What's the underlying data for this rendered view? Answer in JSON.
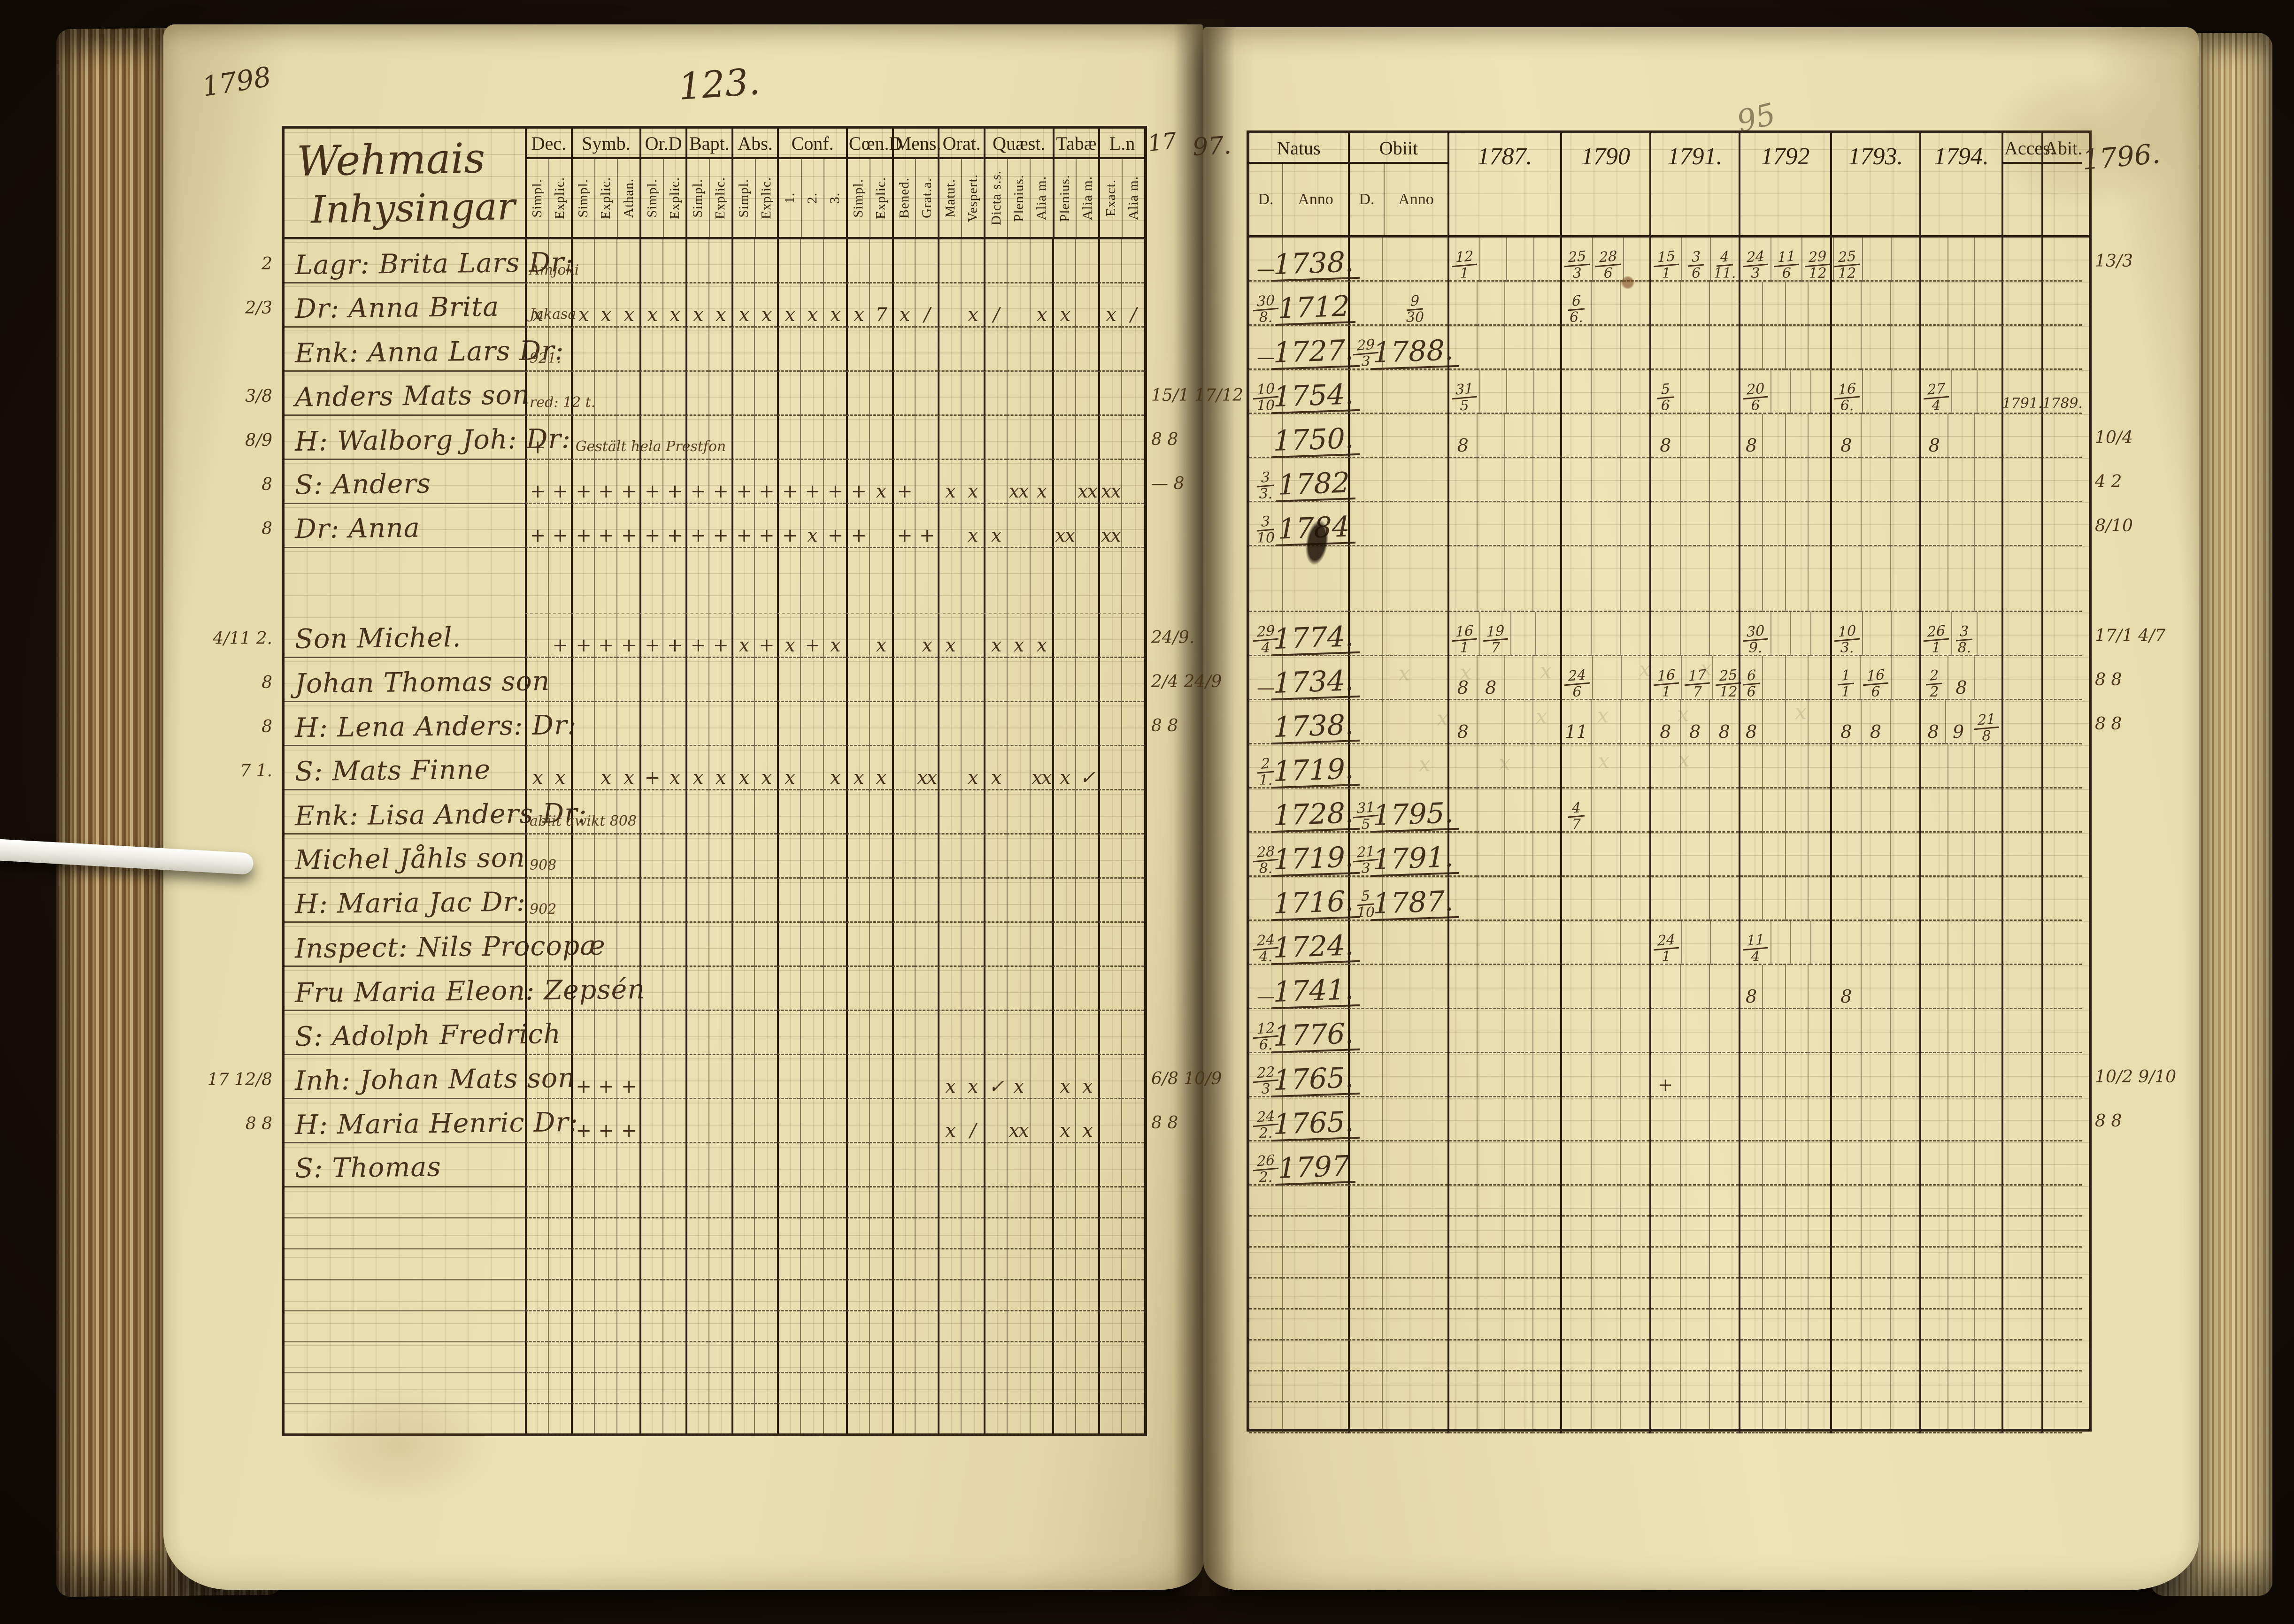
{
  "page": {
    "year_note": "1798",
    "left_page_number": "123.",
    "gutter_note_a": "17",
    "gutter_note_b": "97.",
    "right_page_faint_number": "95",
    "right_year_note": "1796."
  },
  "left_table": {
    "title_line1": "Wehmais",
    "title_line2": "Inhysingar",
    "groups": [
      {
        "label": "Dec.",
        "subs": [
          "Simpl.",
          "Explic."
        ]
      },
      {
        "label": "Symb.",
        "subs": [
          "Simpl.",
          "Explic.",
          "Athan."
        ]
      },
      {
        "label": "Or.D",
        "subs": [
          "Simpl.",
          "Explic."
        ]
      },
      {
        "label": "Bapt.",
        "subs": [
          "Simpl.",
          "Explic."
        ]
      },
      {
        "label": "Abs.",
        "subs": [
          "Simpl.",
          "Explic."
        ]
      },
      {
        "label": "Conf.",
        "subs": [
          "1.",
          "2.",
          "3."
        ]
      },
      {
        "label": "Cœn.D",
        "subs": [
          "Simpl.",
          "Explic."
        ]
      },
      {
        "label": "Mens.",
        "subs": [
          "Bened.",
          "Grat.a."
        ]
      },
      {
        "label": "Orat.",
        "subs": [
          "Matut.",
          "Vespert."
        ]
      },
      {
        "label": "Quæst.",
        "subs": [
          "Dicta s.s.",
          "Plenius.",
          "Alia m."
        ]
      },
      {
        "label": "Tabæ",
        "subs": [
          "Plenius.",
          "Alia m."
        ]
      },
      {
        "label": "L.n",
        "subs": [
          "Exact.",
          "Alia m."
        ]
      }
    ],
    "rows": [
      {
        "margin": "2",
        "name": "Lagr: Brita Lars Dr:",
        "note": "Amjoki",
        "note_col": 0,
        "marks": [],
        "right_note": ""
      },
      {
        "margin": "2/3",
        "name": "Dr: Anna Brita",
        "note": "Jakasa",
        "note_col": 0,
        "marks": [
          "x",
          "",
          "x",
          "x",
          "x",
          "x",
          "x",
          "x",
          "x",
          "x",
          "x",
          "x",
          "x",
          "x",
          "x",
          "7",
          "x",
          "/",
          "",
          "x",
          "/",
          "",
          "x",
          "x",
          "",
          "x",
          "/"
        ],
        "right_note": ""
      },
      {
        "margin": "",
        "name": "Enk: Anna Lars Dr:",
        "note": "921.",
        "note_col": 0,
        "marks": [],
        "right_note": ""
      },
      {
        "margin": "3/8",
        "name": "Anders Mats son",
        "note": "red: 12 t.",
        "note_col": 0,
        "marks": [],
        "right_note": "15/1  17/12"
      },
      {
        "margin": "8/9",
        "name": "H: Walborg Joh: Dr:",
        "note": "Gestält hela  Prestfon",
        "note_col": 2,
        "marks": [
          "+",
          "",
          "",
          "",
          "",
          "",
          "",
          "",
          "",
          "",
          "",
          "",
          "",
          "",
          "",
          "",
          "",
          "",
          "",
          "",
          "",
          "",
          "",
          "",
          "",
          "",
          ""
        ],
        "right_note": "8 8"
      },
      {
        "margin": "8",
        "name": "S: Anders",
        "note": "",
        "note_col": 0,
        "marks": [
          "+",
          "+",
          "+",
          "+",
          "+",
          "+",
          "+",
          "+",
          "+",
          "+",
          "+",
          "+",
          "+",
          "+",
          "+",
          "x",
          "+",
          "",
          "x",
          "x",
          "",
          "xx",
          "x",
          "",
          "xx",
          "xx",
          ""
        ],
        "right_note": "— 8"
      },
      {
        "margin": "8",
        "name": "Dr: Anna",
        "note": "",
        "note_col": 0,
        "marks": [
          "+",
          "+",
          "+",
          "+",
          "+",
          "+",
          "+",
          "+",
          "+",
          "+",
          "+",
          "+",
          "x",
          "+",
          "+",
          "",
          "+",
          "+",
          "",
          "x",
          "x",
          "",
          "",
          "xx",
          "",
          "xx",
          ""
        ],
        "right_note": ""
      },
      {
        "margin": "4/11  2.",
        "name": "Son Michel.",
        "note": "",
        "note_col": 0,
        "marks": [
          "",
          "+",
          "+",
          "+",
          "+",
          "+",
          "+",
          "+",
          "+",
          "x",
          "+",
          "x",
          "+",
          "x",
          "",
          "x",
          "",
          "x",
          "x",
          "",
          "x",
          "x",
          "x",
          "",
          "",
          "",
          ""
        ],
        "right_note": "24/9."
      },
      {
        "margin": "8",
        "name": "Johan Thomas son",
        "note": "",
        "note_col": 0,
        "marks": [],
        "right_note": "2/4  24/9"
      },
      {
        "margin": "8",
        "name": "H: Lena Anders: Dr:",
        "note": "",
        "note_col": 0,
        "marks": [],
        "right_note": "8 8"
      },
      {
        "margin": "7   1.",
        "name": "S: Mats Finne",
        "note": "",
        "note_col": 0,
        "marks": [
          "x",
          "x",
          "",
          "x",
          "x",
          "+",
          "x",
          "x",
          "x",
          "x",
          "x",
          "x",
          "",
          "x",
          "x",
          "x",
          "",
          "xx",
          "",
          "x",
          "x",
          "",
          "xx",
          "x",
          "✓",
          "",
          ""
        ],
        "right_note": ""
      },
      {
        "margin": "",
        "name": "Enk: Lisa Anders Dr:",
        "note": "abiit   awikt   808",
        "note_col": 0,
        "marks": [],
        "right_note": ""
      },
      {
        "margin": "",
        "name": "Michel Jåhls son",
        "note": "908",
        "note_col": 0,
        "marks": [],
        "right_note": ""
      },
      {
        "margin": "",
        "name": "H: Maria Jac Dr:",
        "note": "902",
        "note_col": 0,
        "marks": [],
        "right_note": ""
      },
      {
        "margin": "",
        "name": "Inspect: Nils Procopæ",
        "note": "",
        "note_col": 0,
        "marks": [],
        "right_note": ""
      },
      {
        "margin": "",
        "name": "Fru Maria Eleon: Zepsén",
        "note": "",
        "note_col": 0,
        "marks": [],
        "right_note": ""
      },
      {
        "margin": "",
        "name": "S: Adolph Fredrich",
        "note": "",
        "note_col": 0,
        "marks": [],
        "right_note": ""
      },
      {
        "margin": "17 12/8",
        "name": "Inh: Johan Mats son",
        "note": "",
        "note_col": 0,
        "marks": [
          "",
          "",
          "+",
          "+",
          "+",
          "",
          "",
          "",
          "",
          "",
          "",
          "",
          "",
          "",
          "",
          "",
          "",
          "",
          "x",
          "x",
          "✓",
          "x",
          "",
          "x",
          "x",
          "",
          ""
        ],
        "right_note": "6/8  10/9"
      },
      {
        "margin": "8  8",
        "name": "H: Maria Henric Dr:",
        "note": "",
        "note_col": 0,
        "marks": [
          "",
          "",
          "+",
          "+",
          "+",
          "",
          "",
          "",
          "",
          "",
          "",
          "",
          "",
          "",
          "",
          "",
          "",
          "",
          "x",
          "/",
          "",
          "xx",
          "",
          "x",
          "x",
          "",
          ""
        ],
        "right_note": "8 8"
      },
      {
        "margin": "",
        "name": "S: Thomas",
        "note": "",
        "note_col": 0,
        "marks": [],
        "right_note": ""
      }
    ],
    "blank_rows": 8
  },
  "right_table": {
    "natus_label": "Natus",
    "obiit_label": "Obiit",
    "d_label": "D.",
    "anno_label": "Anno",
    "years": [
      {
        "label": "1787.",
        "cols": 4
      },
      {
        "label": "1790",
        "cols": 3
      },
      {
        "label": "1791.",
        "cols": 3
      },
      {
        "label": "1792",
        "cols": 4
      },
      {
        "label": "1793.",
        "cols": 3
      },
      {
        "label": "1794.",
        "cols": 3
      }
    ],
    "acces_label": "Acces.",
    "abit_label": "Abit.",
    "rows": [
      {
        "natus_d": "—",
        "natus_anno": "1738.",
        "obiit_d": "",
        "obiit_anno": "",
        "years": {
          "1787": [
            "12/1"
          ],
          "1790": [
            "25/3",
            "28/6"
          ],
          "1791": [
            "15/1",
            "3/6",
            "4/11."
          ],
          "1792": [
            "24/3",
            "11/6",
            "29/12"
          ],
          "1793": [
            "25/12"
          ]
        },
        "acces": "",
        "abit": "",
        "margin": "13/3"
      },
      {
        "natus_d": "30/8.",
        "natus_anno": "1712",
        "obiit_d": "",
        "obiit_anno": "9/30",
        "years": {
          "1790": [
            "6/6."
          ]
        },
        "acces": "",
        "abit": "",
        "margin": ""
      },
      {
        "natus_d": "—",
        "natus_anno": "1727.",
        "obiit_d": "29/3",
        "obiit_anno": "1788.",
        "years": {},
        "acces": "",
        "abit": "",
        "margin": ""
      },
      {
        "natus_d": "10/10",
        "natus_anno": "1754.",
        "obiit_d": "",
        "obiit_anno": "",
        "years": {
          "1787": [
            "31/5"
          ],
          "1791": [
            "5/6"
          ],
          "1792": [
            "20/6"
          ],
          "1793": [
            "16/6."
          ],
          "1794": [
            "27/4"
          ]
        },
        "acces": "1791.",
        "abit": "1789.",
        "margin": ""
      },
      {
        "natus_d": "",
        "natus_anno": "1750.",
        "obiit_d": "",
        "obiit_anno": "",
        "years": {
          "1787": [
            "8"
          ],
          "1791": [
            "8"
          ],
          "1792": [
            "8"
          ],
          "1793": [
            "8"
          ],
          "1794": [
            "8"
          ]
        },
        "acces": "",
        "abit": "",
        "margin": "10/4"
      },
      {
        "natus_d": "3/3.",
        "natus_anno": "1782",
        "obiit_d": "",
        "obiit_anno": "",
        "years": {},
        "acces": "",
        "abit": "",
        "margin": "4  2"
      },
      {
        "natus_d": "3/10",
        "natus_anno": "1784",
        "obiit_d": "",
        "obiit_anno": "",
        "years": {},
        "acces": "",
        "abit": "",
        "margin": "8/10"
      },
      {
        "natus_d": "29/4",
        "natus_anno": "1774.",
        "obiit_d": "",
        "obiit_anno": "",
        "years": {
          "1787": [
            "16/1",
            "19/7"
          ],
          "1792": [
            "30/9."
          ],
          "1793": [
            "10/3."
          ],
          "1794": [
            "26/1",
            "3/8."
          ]
        },
        "acces": "",
        "abit": "",
        "margin": "17/1  4/7"
      },
      {
        "natus_d": "—",
        "natus_anno": "1734.",
        "obiit_d": "",
        "obiit_anno": "",
        "years": {
          "1787": [
            "8",
            "8"
          ],
          "1790": [
            "24/6"
          ],
          "1791": [
            "16/1",
            "17/7",
            "25/12"
          ],
          "1792": [
            "6/6"
          ],
          "1793": [
            "1/1",
            "16/6"
          ],
          "1794": [
            "2/2",
            "8"
          ]
        },
        "acces": "",
        "abit": "",
        "margin": "8 8"
      },
      {
        "natus_d": "",
        "natus_anno": "1738.",
        "obiit_d": "",
        "obiit_anno": "",
        "years": {
          "1787": [
            "8"
          ],
          "1790": [
            "11"
          ],
          "1791": [
            "8",
            "8",
            "8"
          ],
          "1792": [
            "8"
          ],
          "1793": [
            "8",
            "8"
          ],
          "1794": [
            "8",
            "9",
            "21/8"
          ]
        },
        "acces": "",
        "abit": "",
        "margin": "8 8"
      },
      {
        "natus_d": "2/1.",
        "natus_anno": "1719.",
        "obiit_d": "",
        "obiit_anno": "",
        "years": {},
        "acces": "",
        "abit": "",
        "margin": ""
      },
      {
        "natus_d": "",
        "natus_anno": "1728.",
        "obiit_d": "31/5",
        "obiit_anno": "1795.",
        "years": {
          "1790": [
            "4/7"
          ]
        },
        "acces": "",
        "abit": "",
        "margin": ""
      },
      {
        "natus_d": "28/8.",
        "natus_anno": "1719.",
        "obiit_d": "21/3",
        "obiit_anno": "1791.",
        "years": {},
        "acces": "",
        "abit": "",
        "margin": ""
      },
      {
        "natus_d": "",
        "natus_anno": "1716.",
        "obiit_d": "5/10",
        "obiit_anno": "1787.",
        "years": {},
        "acces": "",
        "abit": "",
        "margin": ""
      },
      {
        "natus_d": "24/4.",
        "natus_anno": "1724.",
        "obiit_d": "",
        "obiit_anno": "",
        "years": {
          "1791": [
            "24/1"
          ],
          "1792": [
            "11/4"
          ]
        },
        "acces": "",
        "abit": "",
        "margin": ""
      },
      {
        "natus_d": "—",
        "natus_anno": "1741.",
        "obiit_d": "",
        "obiit_anno": "",
        "years": {
          "1792": [
            "8"
          ],
          "1793": [
            "8"
          ]
        },
        "acces": "",
        "abit": "",
        "margin": ""
      },
      {
        "natus_d": "12/6.",
        "natus_anno": "1776.",
        "obiit_d": "",
        "obiit_anno": "",
        "years": {},
        "acces": "",
        "abit": "",
        "margin": ""
      },
      {
        "natus_d": "22/3",
        "natus_anno": "1765.",
        "obiit_d": "",
        "obiit_anno": "",
        "years": {
          "1791": [
            "+"
          ]
        },
        "acces": "",
        "abit": "",
        "margin": "10/2  9/10"
      },
      {
        "natus_d": "24/2.",
        "natus_anno": "1765.",
        "obiit_d": "",
        "obiit_anno": "",
        "years": {},
        "acces": "",
        "abit": "",
        "margin": "8 8"
      },
      {
        "natus_d": "26/2.",
        "natus_anno": "1797",
        "obiit_d": "",
        "obiit_anno": "",
        "years": {},
        "acces": "",
        "abit": "",
        "margin": ""
      }
    ],
    "blank_rows": 8
  }
}
